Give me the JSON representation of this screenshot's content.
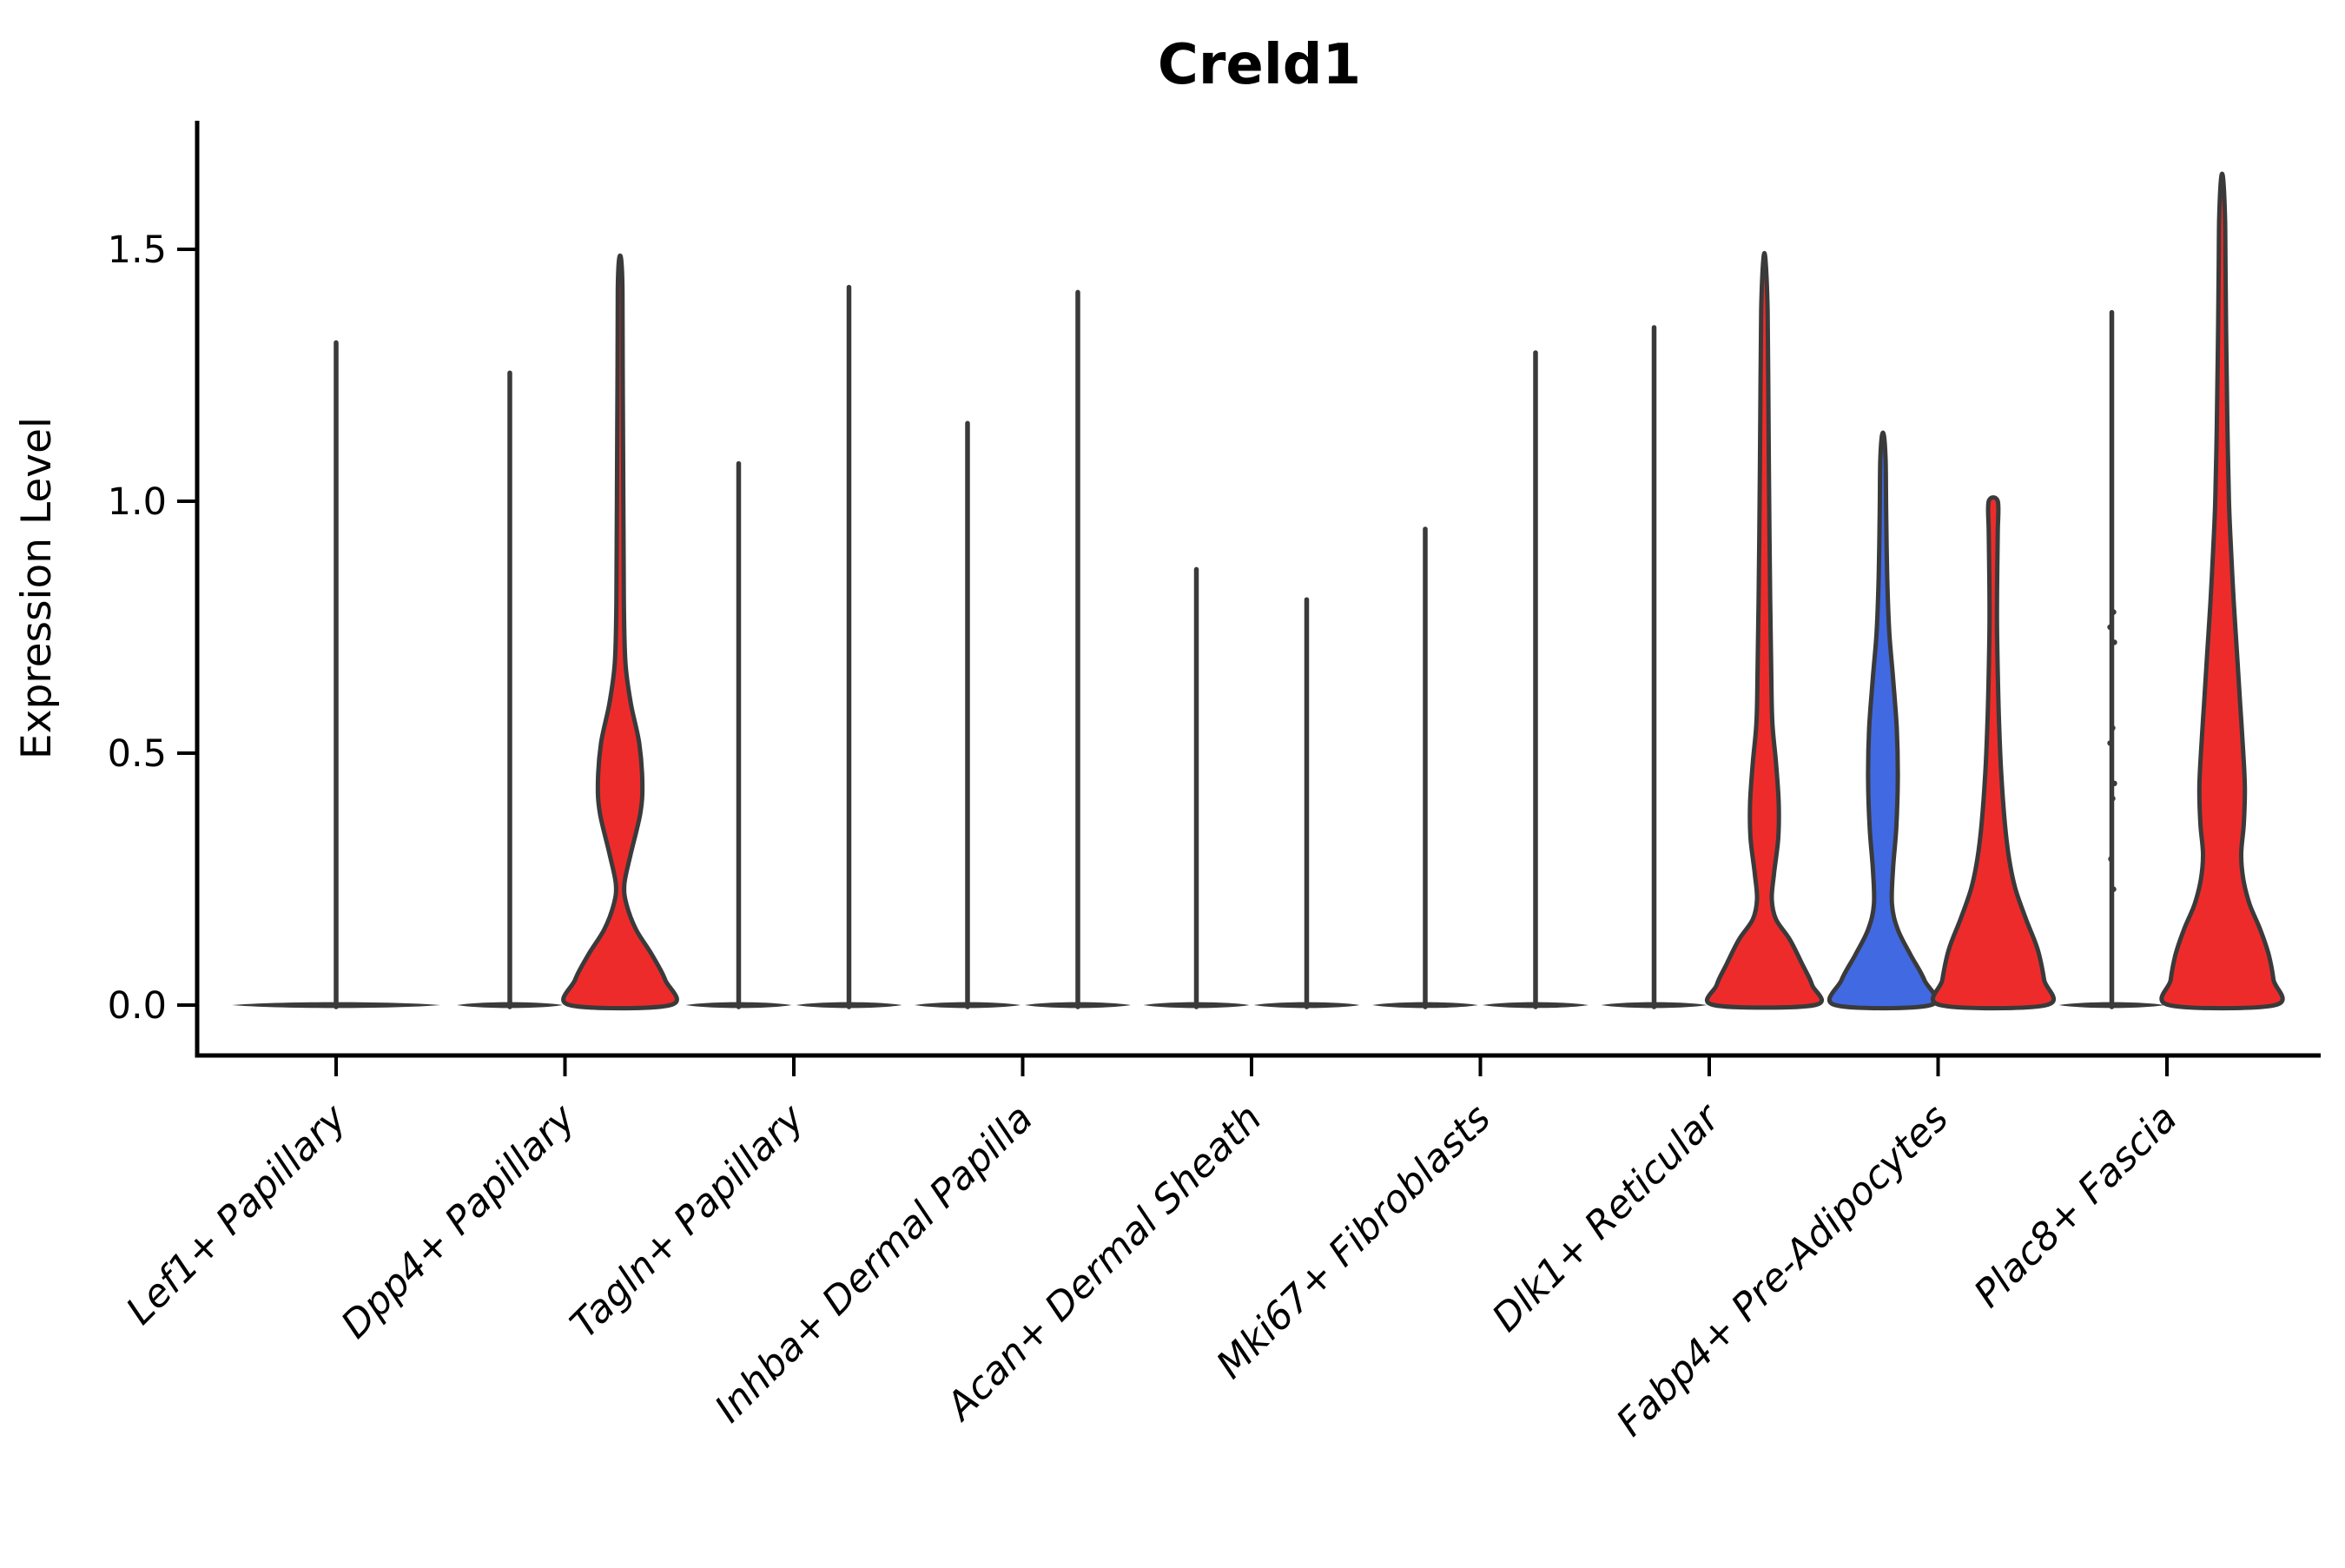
{
  "title": "Creld1",
  "ylabel": "Expression Level",
  "chart_data": {
    "type": "violin",
    "title": "Creld1",
    "xlabel": "",
    "ylabel": "Expression Level",
    "ylim": [
      -0.1,
      1.75
    ],
    "grid": false,
    "legend": "none",
    "yticks": [
      {
        "value": 0.0,
        "label": "0.0"
      },
      {
        "value": 0.5,
        "label": "0.5"
      },
      {
        "value": 1.0,
        "label": "1.0"
      },
      {
        "value": 1.5,
        "label": "1.5"
      }
    ],
    "categories": [
      "Lef1+ Papillary",
      "Dpp4+ Papillary",
      "Tagln+ Papillary",
      "Inhba+ Dermal Papilla",
      "Acan+ Dermal Sheath",
      "Mki67+ Fibroblasts",
      "Dlk1+ Reticular",
      "Fabp4+ Pre-Adipocytes",
      "Plac8+ Fascia"
    ],
    "colors": {
      "red": "#ee2b2b",
      "blue": "#4169e1",
      "outline": "#3a3a3a",
      "axis": "#000000",
      "background": "#ffffff"
    },
    "violins": [
      {
        "category": 0,
        "position": "full",
        "style": "spike",
        "color": "none",
        "max": 1.32
      },
      {
        "category": 1,
        "position": "left",
        "style": "spike",
        "color": "none",
        "max": 1.26
      },
      {
        "category": 1,
        "position": "right",
        "style": "body",
        "color": "red",
        "max": 1.48,
        "profile": [
          [
            0,
            0.95
          ],
          [
            0.05,
            0.85
          ],
          [
            0.1,
            0.6
          ],
          [
            0.15,
            0.3
          ],
          [
            0.2,
            0.12
          ],
          [
            0.24,
            0.08
          ],
          [
            0.3,
            0.2
          ],
          [
            0.38,
            0.38
          ],
          [
            0.44,
            0.42
          ],
          [
            0.52,
            0.36
          ],
          [
            0.6,
            0.2
          ],
          [
            0.68,
            0.1
          ],
          [
            0.8,
            0.07
          ],
          [
            1.0,
            0.06
          ],
          [
            1.25,
            0.05
          ],
          [
            1.42,
            0.045
          ],
          [
            1.48,
            0.02
          ]
        ]
      },
      {
        "category": 2,
        "position": "left",
        "style": "spike",
        "color": "none",
        "max": 1.08
      },
      {
        "category": 2,
        "position": "right",
        "style": "spike",
        "color": "none",
        "max": 1.43
      },
      {
        "category": 3,
        "position": "left",
        "style": "spike",
        "color": "none",
        "max": 1.16
      },
      {
        "category": 3,
        "position": "right",
        "style": "spike",
        "color": "none",
        "max": 1.42
      },
      {
        "category": 4,
        "position": "left",
        "style": "spike",
        "color": "none",
        "max": 0.87
      },
      {
        "category": 4,
        "position": "right",
        "style": "spike",
        "color": "none",
        "max": 0.81
      },
      {
        "category": 5,
        "position": "left",
        "style": "spike",
        "color": "none",
        "max": 0.95
      },
      {
        "category": 5,
        "position": "right",
        "style": "spike",
        "color": "none",
        "max": 1.3
      },
      {
        "category": 6,
        "position": "left",
        "style": "spike",
        "color": "none",
        "max": 1.35
      },
      {
        "category": 6,
        "position": "right",
        "style": "body",
        "color": "red",
        "max": 1.48,
        "profile": [
          [
            0,
            0.95
          ],
          [
            0.04,
            0.9
          ],
          [
            0.08,
            0.72
          ],
          [
            0.13,
            0.48
          ],
          [
            0.17,
            0.22
          ],
          [
            0.21,
            0.14
          ],
          [
            0.26,
            0.18
          ],
          [
            0.33,
            0.26
          ],
          [
            0.4,
            0.27
          ],
          [
            0.48,
            0.22
          ],
          [
            0.56,
            0.15
          ],
          [
            0.66,
            0.13
          ],
          [
            0.8,
            0.11
          ],
          [
            1.0,
            0.09
          ],
          [
            1.2,
            0.075
          ],
          [
            1.38,
            0.06
          ],
          [
            1.48,
            0.02
          ]
        ]
      },
      {
        "category": 7,
        "position": "left",
        "style": "body",
        "color": "blue",
        "max": 1.13,
        "profile": [
          [
            0,
            0.9
          ],
          [
            0.05,
            0.78
          ],
          [
            0.1,
            0.52
          ],
          [
            0.15,
            0.28
          ],
          [
            0.2,
            0.17
          ],
          [
            0.27,
            0.19
          ],
          [
            0.35,
            0.25
          ],
          [
            0.45,
            0.28
          ],
          [
            0.55,
            0.26
          ],
          [
            0.65,
            0.19
          ],
          [
            0.74,
            0.12
          ],
          [
            0.85,
            0.08
          ],
          [
            0.98,
            0.06
          ],
          [
            1.08,
            0.05
          ],
          [
            1.13,
            0.02
          ]
        ]
      },
      {
        "category": 7,
        "position": "right",
        "style": "body",
        "color": "red",
        "max": 1.0,
        "profile": [
          [
            0,
            1.0
          ],
          [
            0.05,
            0.96
          ],
          [
            0.11,
            0.84
          ],
          [
            0.17,
            0.62
          ],
          [
            0.23,
            0.42
          ],
          [
            0.29,
            0.3
          ],
          [
            0.36,
            0.22
          ],
          [
            0.46,
            0.15
          ],
          [
            0.56,
            0.11
          ],
          [
            0.66,
            0.085
          ],
          [
            0.76,
            0.07
          ],
          [
            0.86,
            0.075
          ],
          [
            0.94,
            0.085
          ],
          [
            1.0,
            0.085
          ]
        ]
      },
      {
        "category": 8,
        "position": "left",
        "style": "spike",
        "color": "none",
        "max": 1.38,
        "points": [
          0.78,
          0.75,
          0.72,
          0.55,
          0.52,
          0.44,
          0.41,
          0.29,
          0.23
        ]
      },
      {
        "category": 8,
        "position": "right",
        "style": "body",
        "color": "red",
        "max": 1.64,
        "profile": [
          [
            0,
            1.0
          ],
          [
            0.05,
            0.97
          ],
          [
            0.1,
            0.88
          ],
          [
            0.15,
            0.72
          ],
          [
            0.2,
            0.52
          ],
          [
            0.25,
            0.4
          ],
          [
            0.3,
            0.36
          ],
          [
            0.36,
            0.41
          ],
          [
            0.43,
            0.43
          ],
          [
            0.5,
            0.4
          ],
          [
            0.6,
            0.34
          ],
          [
            0.7,
            0.28
          ],
          [
            0.8,
            0.22
          ],
          [
            0.9,
            0.17
          ],
          [
            1.0,
            0.13
          ],
          [
            1.15,
            0.1
          ],
          [
            1.3,
            0.08
          ],
          [
            1.45,
            0.065
          ],
          [
            1.56,
            0.055
          ],
          [
            1.64,
            0.02
          ]
        ]
      }
    ]
  }
}
